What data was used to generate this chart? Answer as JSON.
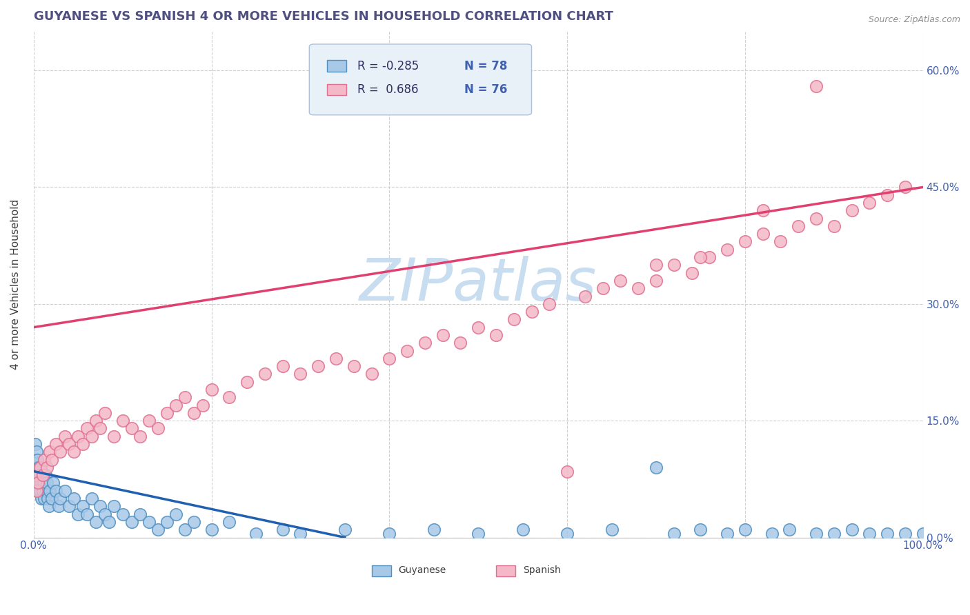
{
  "title": "GUYANESE VS SPANISH 4 OR MORE VEHICLES IN HOUSEHOLD CORRELATION CHART",
  "source_text": "Source: ZipAtlas.com",
  "ylabel": "4 or more Vehicles in Household",
  "xlim": [
    0.0,
    100.0
  ],
  "ylim": [
    0.0,
    65.0
  ],
  "xticks": [
    0.0,
    20.0,
    40.0,
    60.0,
    80.0,
    100.0
  ],
  "xtick_labels": [
    "0.0%",
    "",
    "",
    "",
    "",
    "100.0%"
  ],
  "yticks": [
    0.0,
    15.0,
    30.0,
    45.0,
    60.0
  ],
  "ytick_labels": [
    "0.0%",
    "15.0%",
    "30.0%",
    "45.0%",
    "60.0%"
  ],
  "guyanese_R": -0.285,
  "guyanese_N": 78,
  "spanish_R": 0.686,
  "spanish_N": 76,
  "blue_color": "#a8c8e8",
  "pink_color": "#f4b8c8",
  "blue_edge_color": "#5090c0",
  "pink_edge_color": "#e07090",
  "blue_line_color": "#2060b0",
  "pink_line_color": "#e04070",
  "title_color": "#505080",
  "axis_color": "#4060b0",
  "tick_color": "#4060b0",
  "watermark": "ZIPatlas",
  "watermark_color": "#c8ddf0",
  "background_color": "#ffffff",
  "grid_color": "#d0d0d0",
  "legend_box_color": "#e8f0f8",
  "legend_border_color": "#b0c0d8",
  "source_color": "#909090",
  "guyanese_x": [
    0.1,
    0.2,
    0.2,
    0.3,
    0.3,
    0.4,
    0.4,
    0.5,
    0.5,
    0.6,
    0.6,
    0.7,
    0.7,
    0.8,
    0.8,
    0.9,
    1.0,
    1.0,
    1.1,
    1.2,
    1.3,
    1.4,
    1.5,
    1.6,
    1.7,
    1.8,
    2.0,
    2.2,
    2.5,
    2.8,
    3.0,
    3.5,
    4.0,
    4.5,
    5.0,
    5.5,
    6.0,
    6.5,
    7.0,
    7.5,
    8.0,
    8.5,
    9.0,
    10.0,
    11.0,
    12.0,
    13.0,
    14.0,
    15.0,
    16.0,
    17.0,
    18.0,
    20.0,
    22.0,
    25.0,
    28.0,
    30.0,
    35.0,
    40.0,
    45.0,
    50.0,
    55.0,
    60.0,
    65.0,
    70.0,
    72.0,
    75.0,
    78.0,
    80.0,
    83.0,
    85.0,
    88.0,
    90.0,
    92.0,
    94.0,
    96.0,
    98.0,
    100.0
  ],
  "guyanese_y": [
    10.0,
    8.0,
    12.0,
    9.0,
    11.0,
    7.0,
    10.0,
    8.0,
    6.0,
    9.0,
    7.0,
    8.0,
    6.0,
    7.0,
    9.0,
    5.0,
    8.0,
    6.0,
    7.0,
    5.0,
    8.0,
    6.0,
    7.0,
    5.0,
    4.0,
    6.0,
    5.0,
    7.0,
    6.0,
    4.0,
    5.0,
    6.0,
    4.0,
    5.0,
    3.0,
    4.0,
    3.0,
    5.0,
    2.0,
    4.0,
    3.0,
    2.0,
    4.0,
    3.0,
    2.0,
    3.0,
    2.0,
    1.0,
    2.0,
    3.0,
    1.0,
    2.0,
    1.0,
    2.0,
    0.5,
    1.0,
    0.5,
    1.0,
    0.5,
    1.0,
    0.5,
    1.0,
    0.5,
    1.0,
    9.0,
    0.5,
    1.0,
    0.5,
    1.0,
    0.5,
    1.0,
    0.5,
    0.5,
    1.0,
    0.5,
    0.5,
    0.5,
    0.5
  ],
  "spanish_x": [
    0.2,
    0.3,
    0.5,
    0.7,
    1.0,
    1.2,
    1.5,
    1.8,
    2.0,
    2.5,
    3.0,
    3.5,
    4.0,
    4.5,
    5.0,
    5.5,
    6.0,
    6.5,
    7.0,
    7.5,
    8.0,
    9.0,
    10.0,
    11.0,
    12.0,
    13.0,
    14.0,
    15.0,
    16.0,
    17.0,
    18.0,
    19.0,
    20.0,
    22.0,
    24.0,
    26.0,
    28.0,
    30.0,
    32.0,
    34.0,
    36.0,
    38.0,
    40.0,
    42.0,
    44.0,
    46.0,
    48.0,
    50.0,
    52.0,
    54.0,
    56.0,
    58.0,
    60.0,
    62.0,
    64.0,
    66.0,
    68.0,
    70.0,
    72.0,
    74.0,
    76.0,
    78.0,
    80.0,
    82.0,
    84.0,
    86.0,
    88.0,
    90.0,
    92.0,
    94.0,
    96.0,
    98.0,
    70.0,
    75.0,
    82.0,
    88.0
  ],
  "spanish_y": [
    8.0,
    6.0,
    7.0,
    9.0,
    8.0,
    10.0,
    9.0,
    11.0,
    10.0,
    12.0,
    11.0,
    13.0,
    12.0,
    11.0,
    13.0,
    12.0,
    14.0,
    13.0,
    15.0,
    14.0,
    16.0,
    13.0,
    15.0,
    14.0,
    13.0,
    15.0,
    14.0,
    16.0,
    17.0,
    18.0,
    16.0,
    17.0,
    19.0,
    18.0,
    20.0,
    21.0,
    22.0,
    21.0,
    22.0,
    23.0,
    22.0,
    21.0,
    23.0,
    24.0,
    25.0,
    26.0,
    25.0,
    27.0,
    26.0,
    28.0,
    29.0,
    30.0,
    8.5,
    31.0,
    32.0,
    33.0,
    32.0,
    33.0,
    35.0,
    34.0,
    36.0,
    37.0,
    38.0,
    39.0,
    38.0,
    40.0,
    41.0,
    40.0,
    42.0,
    43.0,
    44.0,
    45.0,
    35.0,
    36.0,
    42.0,
    58.0
  ],
  "spanish_line_x0": 0.0,
  "spanish_line_y0": 27.0,
  "spanish_line_x1": 100.0,
  "spanish_line_y1": 45.0,
  "guyanese_line_x0": 0.0,
  "guyanese_line_y0": 8.5,
  "guyanese_line_x1": 35.0,
  "guyanese_line_y1": 0.0
}
